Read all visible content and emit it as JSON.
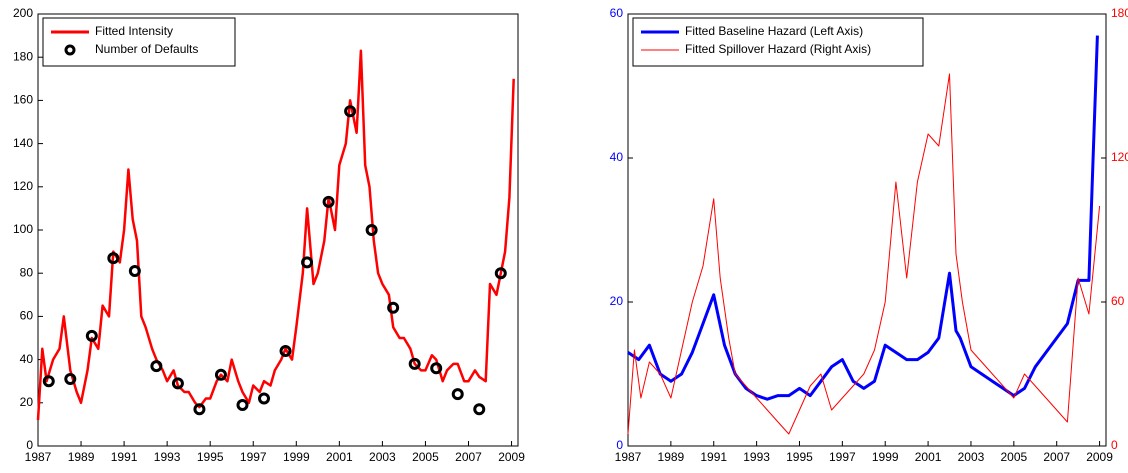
{
  "chart_data": [
    {
      "type": "line",
      "xlim": [
        1987,
        2009.3
      ],
      "xticks": [
        1987,
        1989,
        1991,
        1993,
        1995,
        1997,
        1999,
        2001,
        2003,
        2005,
        2007,
        2009
      ],
      "ylim": [
        0,
        200
      ],
      "yticks": [
        0,
        20,
        40,
        60,
        80,
        100,
        120,
        140,
        160,
        180,
        200
      ],
      "legend": "top-left",
      "series": [
        {
          "name": "Fitted Intensity",
          "color": "#ff0000",
          "mode": "line",
          "x": [
            1987,
            1987.2,
            1987.4,
            1987.7,
            1988,
            1988.2,
            1988.5,
            1988.8,
            1989,
            1989.3,
            1989.5,
            1989.8,
            1990,
            1990.3,
            1990.5,
            1990.8,
            1991,
            1991.2,
            1991.4,
            1991.6,
            1991.8,
            1992,
            1992.3,
            1992.5,
            1992.8,
            1993,
            1993.3,
            1993.5,
            1993.8,
            1994,
            1994.3,
            1994.5,
            1994.8,
            1995,
            1995.3,
            1995.5,
            1995.8,
            1996,
            1996.3,
            1996.5,
            1996.8,
            1997,
            1997.3,
            1997.5,
            1997.8,
            1998,
            1998.3,
            1998.5,
            1998.8,
            1999,
            1999.3,
            1999.5,
            1999.8,
            2000,
            2000.3,
            2000.5,
            2000.8,
            2001,
            2001.3,
            2001.5,
            2001.8,
            2002,
            2002.2,
            2002.4,
            2002.6,
            2002.8,
            2003,
            2003.3,
            2003.5,
            2003.8,
            2004,
            2004.3,
            2004.5,
            2004.8,
            2005,
            2005.3,
            2005.5,
            2005.8,
            2006,
            2006.3,
            2006.5,
            2006.8,
            2007,
            2007.3,
            2007.5,
            2007.8,
            2008,
            2008.3,
            2008.5,
            2008.7,
            2008.9,
            2009.1
          ],
          "values": [
            12,
            45,
            30,
            40,
            45,
            60,
            35,
            25,
            20,
            35,
            50,
            45,
            65,
            60,
            90,
            85,
            100,
            128,
            105,
            95,
            60,
            55,
            45,
            40,
            35,
            30,
            35,
            28,
            25,
            25,
            20,
            18,
            22,
            22,
            30,
            33,
            30,
            40,
            30,
            25,
            20,
            28,
            25,
            30,
            28,
            35,
            40,
            45,
            40,
            55,
            80,
            110,
            75,
            80,
            95,
            115,
            100,
            130,
            140,
            160,
            145,
            183,
            130,
            120,
            95,
            80,
            75,
            70,
            55,
            50,
            50,
            45,
            38,
            35,
            35,
            42,
            40,
            30,
            35,
            38,
            38,
            30,
            30,
            35,
            32,
            30,
            75,
            70,
            80,
            90,
            115,
            170
          ]
        },
        {
          "name": "Number of Defaults",
          "color": "#000000",
          "mode": "markers",
          "x": [
            1987.5,
            1988.5,
            1989.5,
            1990.5,
            1991.5,
            1992.5,
            1993.5,
            1994.5,
            1995.5,
            1996.5,
            1997.5,
            1998.5,
            1999.5,
            2000.5,
            2001.5,
            2002.5,
            2003.5,
            2004.5,
            2005.5,
            2006.5,
            2007.5,
            2008.5
          ],
          "values": [
            30,
            31,
            51,
            87,
            81,
            37,
            29,
            17,
            33,
            19,
            22,
            44,
            85,
            113,
            155,
            100,
            64,
            38,
            36,
            24,
            17,
            80
          ]
        }
      ]
    },
    {
      "type": "line",
      "xlim": [
        1987,
        2009.3
      ],
      "xticks": [
        1987,
        1989,
        1991,
        1993,
        1995,
        1997,
        1999,
        2001,
        2003,
        2005,
        2007,
        2009
      ],
      "ylim": [
        0,
        60
      ],
      "yticks": [
        0,
        20,
        40,
        60
      ],
      "y_color": "#0000ff",
      "y2lim": [
        0,
        180
      ],
      "y2ticks": [
        0,
        60,
        120,
        180
      ],
      "y2_color": "#ff0000",
      "legend": "top-left",
      "series": [
        {
          "name": "Fitted Baseline Hazard (Left Axis)",
          "color": "#0000ff",
          "mode": "line",
          "width": 3,
          "x": [
            1987,
            1987.5,
            1988,
            1988.5,
            1989,
            1989.5,
            1990,
            1990.5,
            1991,
            1991.5,
            1992,
            1992.5,
            1993,
            1993.5,
            1994,
            1994.5,
            1995,
            1995.5,
            1996,
            1996.5,
            1997,
            1997.5,
            1998,
            1998.5,
            1999,
            1999.5,
            2000,
            2000.5,
            2001,
            2001.5,
            2002,
            2002.3,
            2002.5,
            2003,
            2003.5,
            2004,
            2004.5,
            2005,
            2005.5,
            2006,
            2006.5,
            2007,
            2007.5,
            2008,
            2008.5,
            2008.7,
            2008.9
          ],
          "values": [
            13,
            12,
            14,
            10,
            9,
            10,
            13,
            17,
            21,
            14,
            10,
            8,
            7,
            6.5,
            7,
            7,
            8,
            7,
            9,
            11,
            12,
            9,
            8,
            9,
            14,
            13,
            12,
            12,
            13,
            15,
            24,
            16,
            15,
            11,
            10,
            9,
            8,
            7,
            8,
            11,
            13,
            15,
            17,
            23,
            23,
            40,
            57
          ]
        },
        {
          "name": "Fitted Spillover Hazard (Right Axis)",
          "color": "#ff0000",
          "mode": "line",
          "width": 1,
          "axis": "y2",
          "x": [
            1987,
            1987.3,
            1987.6,
            1988,
            1988.5,
            1989,
            1989.5,
            1990,
            1990.5,
            1991,
            1991.3,
            1991.7,
            1992,
            1992.5,
            1993,
            1993.5,
            1994,
            1994.5,
            1995,
            1995.5,
            1996,
            1996.5,
            1997,
            1997.5,
            1998,
            1998.5,
            1999,
            1999.5,
            2000,
            2000.5,
            2001,
            2001.5,
            2002,
            2002.3,
            2002.6,
            2003,
            2003.5,
            2004,
            2004.5,
            2005,
            2005.5,
            2006,
            2006.5,
            2007,
            2007.5,
            2008,
            2008.5,
            2009
          ],
          "values": [
            5,
            40,
            20,
            35,
            30,
            20,
            40,
            60,
            75,
            103,
            70,
            45,
            30,
            25,
            20,
            15,
            10,
            5,
            15,
            25,
            30,
            15,
            20,
            25,
            30,
            40,
            60,
            110,
            70,
            110,
            130,
            125,
            155,
            80,
            60,
            40,
            35,
            30,
            25,
            20,
            30,
            25,
            20,
            15,
            10,
            70,
            55,
            100
          ]
        }
      ]
    }
  ]
}
